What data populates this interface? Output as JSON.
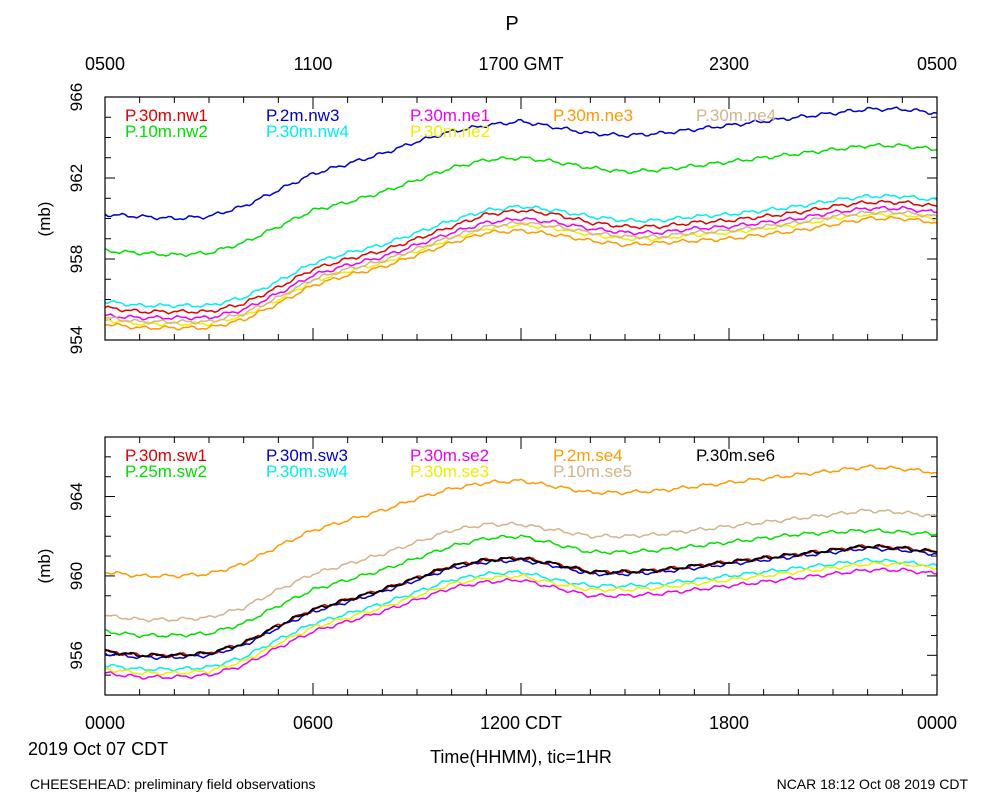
{
  "figure": {
    "title": "P",
    "gmt_ticks": [
      "0500",
      "1100",
      "1700 GMT",
      "2300",
      "0500"
    ],
    "cdt_ticks": [
      "0000",
      "0600",
      "1200 CDT",
      "1800",
      "0000"
    ],
    "date_label": "2019 Oct 07 CDT",
    "xlabel": "Time(HHMM), tic=1HR",
    "footer_left": "CHEESEHEAD: preliminary field observations",
    "footer_right": "NCAR 18:12 Oct 08 2019 CDT"
  },
  "chart_data": [
    {
      "type": "line",
      "title": "P",
      "ylabel": "(mb)",
      "xlabel": "Time(HHMM), tic=1HR",
      "x_unit": "hours since 0000 CDT 2019 Oct 07",
      "xlim": [
        0,
        24
      ],
      "ylim": [
        954,
        966
      ],
      "yticks": [
        "954",
        "958",
        "962",
        "966"
      ],
      "series": [
        {
          "name": "P.30m.nw1",
          "color": "#e00000",
          "x": [
            0,
            1,
            2,
            3,
            4,
            5,
            6,
            7,
            8,
            9,
            10,
            11,
            12,
            13,
            14,
            15,
            16,
            17,
            18,
            19,
            20,
            21,
            22,
            23,
            24
          ],
          "values": [
            955.6,
            955.4,
            955.4,
            955.4,
            955.8,
            956.6,
            957.5,
            958.0,
            958.4,
            959.0,
            959.6,
            960.2,
            960.4,
            960.2,
            959.8,
            959.6,
            959.6,
            959.8,
            959.9,
            960.1,
            960.3,
            960.6,
            960.8,
            960.8,
            960.6
          ]
        },
        {
          "name": "P.10m.nw2",
          "color": "#00e000",
          "x": [
            0,
            1,
            2,
            3,
            4,
            5,
            6,
            7,
            8,
            9,
            10,
            11,
            12,
            13,
            14,
            15,
            16,
            17,
            18,
            19,
            20,
            21,
            22,
            23,
            24
          ],
          "values": [
            958.4,
            958.3,
            958.2,
            958.3,
            958.8,
            959.6,
            960.4,
            960.8,
            961.3,
            961.9,
            962.5,
            962.9,
            963.0,
            962.8,
            962.5,
            962.3,
            962.4,
            962.6,
            962.8,
            963.0,
            963.2,
            963.4,
            963.6,
            963.6,
            963.4
          ]
        },
        {
          "name": "P.2m.nw3",
          "color": "#0000cc",
          "x": [
            0,
            1,
            2,
            3,
            4,
            5,
            6,
            7,
            8,
            9,
            10,
            11,
            12,
            13,
            14,
            15,
            16,
            17,
            18,
            19,
            20,
            21,
            22,
            23,
            24
          ],
          "values": [
            960.2,
            960.1,
            960.0,
            960.1,
            960.6,
            961.4,
            962.2,
            962.7,
            963.2,
            963.8,
            964.3,
            964.6,
            964.8,
            964.5,
            964.2,
            964.1,
            964.2,
            964.4,
            964.6,
            964.8,
            965.0,
            965.2,
            965.4,
            965.4,
            965.2
          ]
        },
        {
          "name": "P.30m.nw4",
          "color": "#00eeee",
          "x": [
            0,
            1,
            2,
            3,
            4,
            5,
            6,
            7,
            8,
            9,
            10,
            11,
            12,
            13,
            14,
            15,
            16,
            17,
            18,
            19,
            20,
            21,
            22,
            23,
            24
          ],
          "values": [
            955.9,
            955.7,
            955.7,
            955.7,
            956.1,
            956.9,
            957.8,
            958.3,
            958.7,
            959.3,
            959.9,
            960.4,
            960.6,
            960.4,
            960.1,
            959.9,
            959.9,
            960.1,
            960.2,
            960.4,
            960.6,
            960.9,
            961.1,
            961.1,
            960.9
          ]
        },
        {
          "name": "P.30m.ne1",
          "color": "#ee00ee",
          "x": [
            0,
            1,
            2,
            3,
            4,
            5,
            6,
            7,
            8,
            9,
            10,
            11,
            12,
            13,
            14,
            15,
            16,
            17,
            18,
            19,
            20,
            21,
            22,
            23,
            24
          ],
          "values": [
            955.2,
            955.1,
            955.1,
            955.1,
            955.5,
            956.3,
            957.2,
            957.7,
            958.1,
            958.7,
            959.3,
            959.8,
            960.0,
            959.8,
            959.5,
            959.3,
            959.3,
            959.5,
            959.6,
            959.8,
            960.0,
            960.3,
            960.5,
            960.5,
            960.3
          ]
        },
        {
          "name": "P.30m.ne2",
          "color": "#eeee00",
          "x": [
            0,
            1,
            2,
            3,
            4,
            5,
            6,
            7,
            8,
            9,
            10,
            11,
            12,
            13,
            14,
            15,
            16,
            17,
            18,
            19,
            20,
            21,
            22,
            23,
            24
          ],
          "values": [
            955.0,
            954.8,
            954.8,
            954.8,
            955.2,
            956.0,
            956.9,
            957.4,
            957.8,
            958.4,
            959.0,
            959.5,
            959.7,
            959.5,
            959.2,
            959.0,
            959.0,
            959.2,
            959.3,
            959.5,
            959.7,
            960.0,
            960.2,
            960.2,
            960.0
          ]
        },
        {
          "name": "P.30m.ne3",
          "color": "#ff9900",
          "x": [
            0,
            1,
            2,
            3,
            4,
            5,
            6,
            7,
            8,
            9,
            10,
            11,
            12,
            13,
            14,
            15,
            16,
            17,
            18,
            19,
            20,
            21,
            22,
            23,
            24
          ],
          "values": [
            954.8,
            954.6,
            954.6,
            954.6,
            955.0,
            955.8,
            956.7,
            957.2,
            957.6,
            958.2,
            958.8,
            959.3,
            959.4,
            959.2,
            958.9,
            958.7,
            958.8,
            958.9,
            959.0,
            959.2,
            959.4,
            959.7,
            960.0,
            960.0,
            959.8
          ]
        },
        {
          "name": "P.30m.ne4",
          "color": "#d2b48c",
          "x": [
            0,
            1,
            2,
            3,
            4,
            5,
            6,
            7,
            8,
            9,
            10,
            11,
            12,
            13,
            14,
            15,
            16,
            17,
            18,
            19,
            20,
            21,
            22,
            23,
            24
          ],
          "values": [
            955.1,
            954.9,
            954.9,
            954.9,
            955.3,
            956.1,
            957.0,
            957.5,
            957.9,
            958.5,
            959.1,
            959.6,
            959.8,
            959.6,
            959.3,
            959.1,
            959.1,
            959.3,
            959.4,
            959.6,
            959.8,
            960.1,
            960.3,
            960.3,
            960.1
          ]
        }
      ]
    },
    {
      "type": "line",
      "title": "",
      "ylabel": "(mb)",
      "xlabel": "Time(HHMM), tic=1HR",
      "x_unit": "hours since 0000 CDT 2019 Oct 07",
      "xlim": [
        0,
        24
      ],
      "ylim": [
        954,
        967
      ],
      "yticks": [
        "956",
        "960",
        "964"
      ],
      "series": [
        {
          "name": "P.30m.sw1",
          "color": "#e00000",
          "x": [
            0,
            1,
            2,
            3,
            4,
            5,
            6,
            7,
            8,
            9,
            10,
            11,
            12,
            13,
            14,
            15,
            16,
            17,
            18,
            19,
            20,
            21,
            22,
            23,
            24
          ],
          "values": [
            956.2,
            956.0,
            956.0,
            956.1,
            956.6,
            957.5,
            958.3,
            958.8,
            959.3,
            959.9,
            960.5,
            960.8,
            960.9,
            960.6,
            960.2,
            960.2,
            960.3,
            960.5,
            960.7,
            960.9,
            961.1,
            961.3,
            961.5,
            961.4,
            961.2
          ]
        },
        {
          "name": "P.25m.sw2",
          "color": "#00e000",
          "x": [
            0,
            1,
            2,
            3,
            4,
            5,
            6,
            7,
            8,
            9,
            10,
            11,
            12,
            13,
            14,
            15,
            16,
            17,
            18,
            19,
            20,
            21,
            22,
            23,
            24
          ],
          "values": [
            957.2,
            957.0,
            957.0,
            957.1,
            957.6,
            958.5,
            959.3,
            959.8,
            960.3,
            960.9,
            961.5,
            961.9,
            962.0,
            961.6,
            961.2,
            961.2,
            961.3,
            961.5,
            961.7,
            961.9,
            962.1,
            962.2,
            962.3,
            962.2,
            962.1
          ]
        },
        {
          "name": "P.30m.sw3",
          "color": "#0000cc",
          "x": [
            0,
            1,
            2,
            3,
            4,
            5,
            6,
            7,
            8,
            9,
            10,
            11,
            12,
            13,
            14,
            15,
            16,
            17,
            18,
            19,
            20,
            21,
            22,
            23,
            24
          ],
          "values": [
            956.1,
            955.9,
            955.9,
            956.0,
            956.5,
            957.4,
            958.2,
            958.7,
            959.2,
            959.8,
            960.4,
            960.7,
            960.8,
            960.5,
            960.1,
            960.1,
            960.2,
            960.4,
            960.6,
            960.8,
            961.0,
            961.2,
            961.4,
            961.3,
            961.1
          ]
        },
        {
          "name": "P.30m.sw4",
          "color": "#00eeee",
          "x": [
            0,
            1,
            2,
            3,
            4,
            5,
            6,
            7,
            8,
            9,
            10,
            11,
            12,
            13,
            14,
            15,
            16,
            17,
            18,
            19,
            20,
            21,
            22,
            23,
            24
          ],
          "values": [
            955.5,
            955.3,
            955.3,
            955.4,
            955.9,
            956.8,
            957.6,
            958.1,
            958.6,
            959.2,
            959.8,
            960.1,
            960.2,
            959.8,
            959.5,
            959.5,
            959.6,
            959.8,
            960.0,
            960.2,
            960.4,
            960.6,
            960.8,
            960.7,
            960.5
          ]
        },
        {
          "name": "P.30m.se2",
          "color": "#ee00ee",
          "x": [
            0,
            1,
            2,
            3,
            4,
            5,
            6,
            7,
            8,
            9,
            10,
            11,
            12,
            13,
            14,
            15,
            16,
            17,
            18,
            19,
            20,
            21,
            22,
            23,
            24
          ],
          "values": [
            955.1,
            954.9,
            954.9,
            955.0,
            955.5,
            956.4,
            957.2,
            957.7,
            958.2,
            958.8,
            959.4,
            959.7,
            959.8,
            959.4,
            959.0,
            959.0,
            959.1,
            959.3,
            959.5,
            959.7,
            959.9,
            960.1,
            960.3,
            960.3,
            960.1
          ]
        },
        {
          "name": "P.30m.se3",
          "color": "#eeee00",
          "x": [
            0,
            1,
            2,
            3,
            4,
            5,
            6,
            7,
            8,
            9,
            10,
            11,
            12,
            13,
            14,
            15,
            16,
            17,
            18,
            19,
            20,
            21,
            22,
            23,
            24
          ],
          "values": [
            955.3,
            955.1,
            955.1,
            955.2,
            955.7,
            956.6,
            957.4,
            957.9,
            958.4,
            959.0,
            959.6,
            959.9,
            960.0,
            959.6,
            959.3,
            959.3,
            959.4,
            959.6,
            959.8,
            960.0,
            960.2,
            960.4,
            960.6,
            960.6,
            960.4
          ]
        },
        {
          "name": "P.2m.se4",
          "color": "#ff9900",
          "x": [
            0,
            1,
            2,
            3,
            4,
            5,
            6,
            7,
            8,
            9,
            10,
            11,
            12,
            13,
            14,
            15,
            16,
            17,
            18,
            19,
            20,
            21,
            22,
            23,
            24
          ],
          "values": [
            960.2,
            960.0,
            960.0,
            960.1,
            960.6,
            961.5,
            962.3,
            962.8,
            963.3,
            963.9,
            964.4,
            964.7,
            964.8,
            964.5,
            964.2,
            964.2,
            964.3,
            964.5,
            964.7,
            964.9,
            965.1,
            965.3,
            965.5,
            965.4,
            965.2
          ]
        },
        {
          "name": "P.10m.se5",
          "color": "#d2b48c",
          "x": [
            0,
            1,
            2,
            3,
            4,
            5,
            6,
            7,
            8,
            9,
            10,
            11,
            12,
            13,
            14,
            15,
            16,
            17,
            18,
            19,
            20,
            21,
            22,
            23,
            24
          ],
          "values": [
            958.0,
            957.8,
            957.8,
            957.9,
            958.4,
            959.3,
            960.1,
            960.6,
            961.1,
            961.7,
            962.3,
            962.6,
            962.6,
            962.3,
            962.0,
            962.0,
            962.1,
            962.3,
            962.5,
            962.7,
            962.9,
            963.1,
            963.3,
            963.2,
            963.0
          ]
        },
        {
          "name": "P.30m.se6",
          "color": "#000000",
          "x": [
            0,
            1,
            2,
            3,
            4,
            5,
            6,
            7,
            8,
            9,
            10,
            11,
            12,
            13,
            14,
            15,
            16,
            17,
            18,
            19,
            20,
            21,
            22,
            23,
            24
          ],
          "values": [
            956.2,
            956.0,
            956.0,
            956.1,
            956.6,
            957.5,
            958.3,
            958.8,
            959.3,
            959.9,
            960.5,
            960.8,
            960.9,
            960.6,
            960.2,
            960.2,
            960.3,
            960.5,
            960.7,
            960.9,
            961.1,
            961.3,
            961.5,
            961.4,
            961.2
          ]
        }
      ]
    }
  ]
}
